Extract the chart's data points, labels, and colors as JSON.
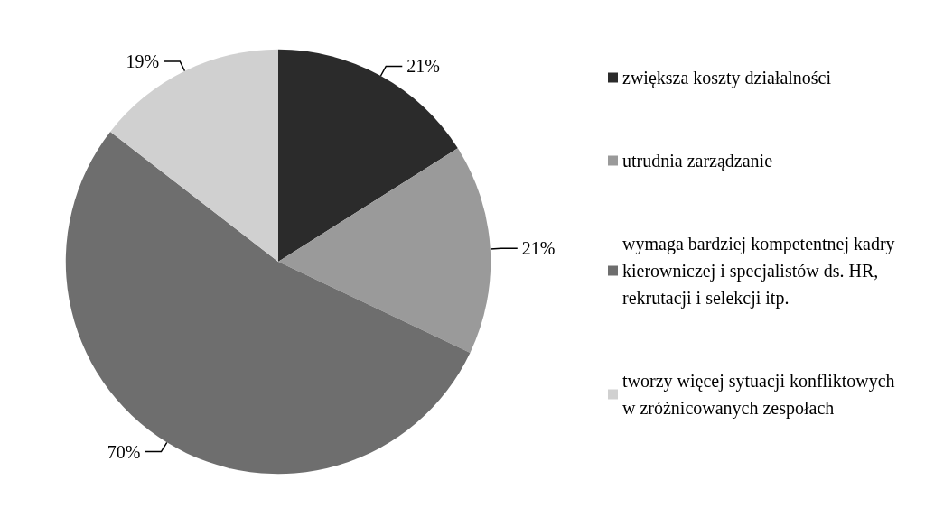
{
  "chart_data": {
    "type": "pie",
    "categories": [
      "zwiększa koszty działalności",
      "utrudnia zarządzanie",
      "wymaga bardziej kompetentnej kadry kierowniczej i specjalistów ds. HR, rekrutacji i selekcji itp.",
      "tworzy więcej sytuacji konfliktowych w zróżnicowanych zespołach"
    ],
    "values": [
      21,
      21,
      70,
      19
    ],
    "value_labels": [
      "21%",
      "21%",
      "70%",
      "19%"
    ],
    "colors": [
      "#2b2b2b",
      "#9a9a9a",
      "#6e6e6e",
      "#d0d0d0"
    ],
    "legend": "right"
  }
}
